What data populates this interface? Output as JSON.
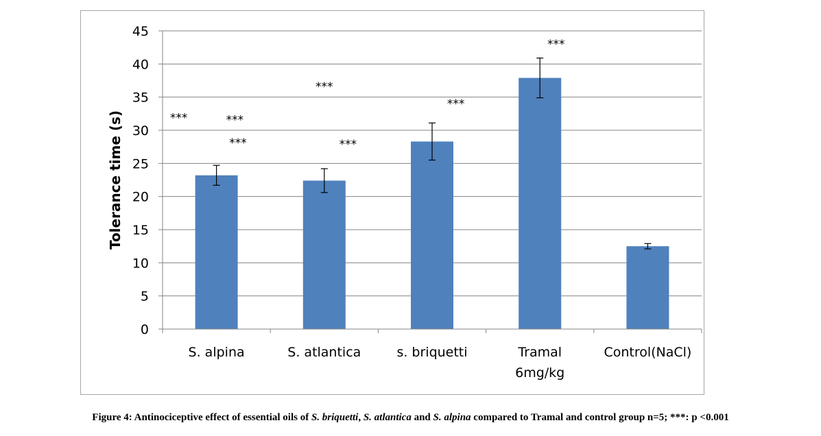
{
  "chart_data": {
    "type": "bar",
    "categories": [
      "S. alpina",
      "S. atlantica",
      "s. briquetti",
      "Tramal 6mg/kg",
      "Control(NaCl)"
    ],
    "category_lines": [
      [
        "S. alpina"
      ],
      [
        "S. atlantica"
      ],
      [
        "s. briquetti"
      ],
      [
        "Tramal",
        "6mg/kg"
      ],
      [
        "Control(NaCl)"
      ]
    ],
    "values": [
      23.2,
      22.4,
      28.3,
      37.9,
      12.5
    ],
    "errors": [
      1.5,
      1.8,
      2.8,
      3.0,
      0.4
    ],
    "ylabel": "Tolerance time (s)",
    "ylim": [
      0,
      45
    ],
    "yticks": [
      0,
      5,
      10,
      15,
      20,
      25,
      30,
      35,
      40,
      45
    ],
    "grid": true,
    "bar_color": "#4f81bd",
    "grid_color": "#868686",
    "annotations": [
      {
        "text": "***",
        "x_category": -0.35,
        "y": 31.3
      },
      {
        "text": "***",
        "x_category": 0.17,
        "y": 31.0
      },
      {
        "text": "***",
        "x_category": 0.2,
        "y": 27.5
      },
      {
        "text": "***",
        "x_category": 1.0,
        "y": 36.0
      },
      {
        "text": "***",
        "x_category": 1.22,
        "y": 27.3
      },
      {
        "text": "***",
        "x_category": 2.22,
        "y": 33.4
      },
      {
        "text": "***",
        "x_category": 3.15,
        "y": 42.4
      }
    ]
  },
  "caption": {
    "prefix": "Figure 4: Antinociceptive effect of essential oils of ",
    "species1": "S. briquetti",
    "sep1": ", ",
    "species2": "S. atlantica",
    "sep2": " and ",
    "species3": "S. alpina",
    "suffix": " compared to Tramal and control group n=5; ***: p <0.001"
  }
}
